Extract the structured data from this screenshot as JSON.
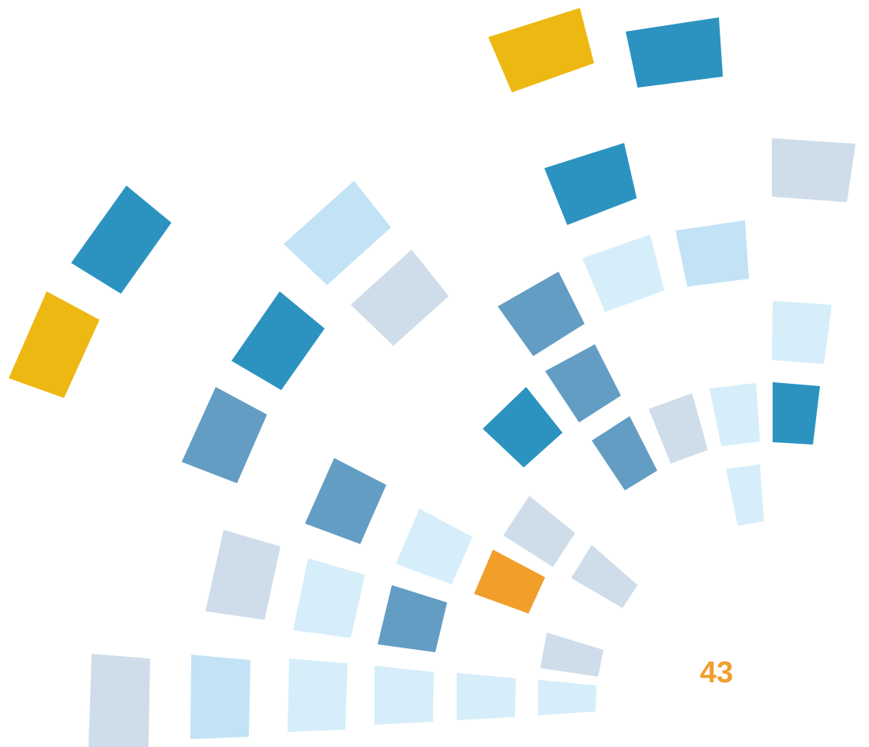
{
  "page_number": "43"
}
